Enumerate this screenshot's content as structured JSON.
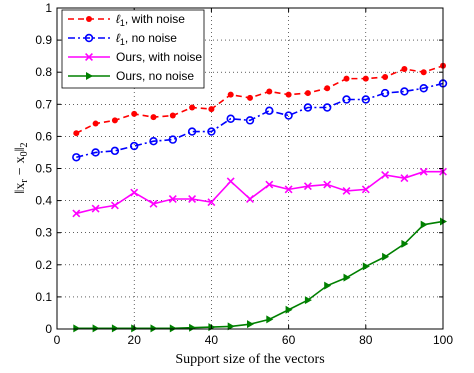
{
  "chart_data": {
    "type": "line",
    "title": "",
    "xlabel": "Support size of the vectors",
    "ylabel": "||x_r − x_0||_2",
    "ylabel_parts": {
      "bars_left": "‖",
      "x1": "x",
      "sub1": "r",
      "minus": "−",
      "x2": "x",
      "sub2": "0",
      "bars_right": "‖",
      "sub_outer": "2"
    },
    "xlim": [
      0,
      100
    ],
    "ylim": [
      0,
      1
    ],
    "xticks": [
      0,
      20,
      40,
      60,
      80,
      100
    ],
    "yticks": [
      0,
      0.1,
      0.2,
      0.3,
      0.4,
      0.5,
      0.6,
      0.7,
      0.8,
      0.9,
      1
    ],
    "grid": true,
    "legend_position": "top-left",
    "x": [
      5,
      10,
      15,
      20,
      25,
      30,
      35,
      40,
      45,
      50,
      55,
      60,
      65,
      70,
      75,
      80,
      85,
      90,
      95,
      100
    ],
    "series": [
      {
        "name": "ℓ1, with noise",
        "name_parts": {
          "symbol": "ℓ",
          "sub": "1",
          "rest": ", with noise"
        },
        "color": "#ff0000",
        "line": "dashed",
        "marker": "dot",
        "values": [
          0.61,
          0.64,
          0.65,
          0.67,
          0.66,
          0.665,
          0.69,
          0.685,
          0.73,
          0.72,
          0.74,
          0.73,
          0.735,
          0.75,
          0.78,
          0.78,
          0.785,
          0.81,
          0.8,
          0.82
        ]
      },
      {
        "name": "ℓ1, no noise",
        "name_parts": {
          "symbol": "ℓ",
          "sub": "1",
          "rest": ", no noise"
        },
        "color": "#0000ff",
        "line": "dashdot",
        "marker": "circle",
        "values": [
          0.535,
          0.55,
          0.555,
          0.57,
          0.585,
          0.59,
          0.615,
          0.615,
          0.655,
          0.65,
          0.68,
          0.665,
          0.69,
          0.69,
          0.715,
          0.715,
          0.735,
          0.74,
          0.75,
          0.765
        ]
      },
      {
        "name": "Ours, with noise",
        "color": "#ff00ff",
        "line": "solid",
        "marker": "x",
        "values": [
          0.36,
          0.375,
          0.385,
          0.425,
          0.39,
          0.405,
          0.405,
          0.395,
          0.46,
          0.405,
          0.45,
          0.435,
          0.445,
          0.45,
          0.43,
          0.435,
          0.48,
          0.47,
          0.49,
          0.49
        ]
      },
      {
        "name": "Ours, no noise",
        "color": "#008000",
        "line": "solid",
        "marker": "triangle-right",
        "values": [
          0.002,
          0.002,
          0.002,
          0.002,
          0.002,
          0.002,
          0.004,
          0.006,
          0.008,
          0.015,
          0.03,
          0.06,
          0.09,
          0.135,
          0.16,
          0.195,
          0.225,
          0.265,
          0.325,
          0.335
        ]
      }
    ]
  }
}
